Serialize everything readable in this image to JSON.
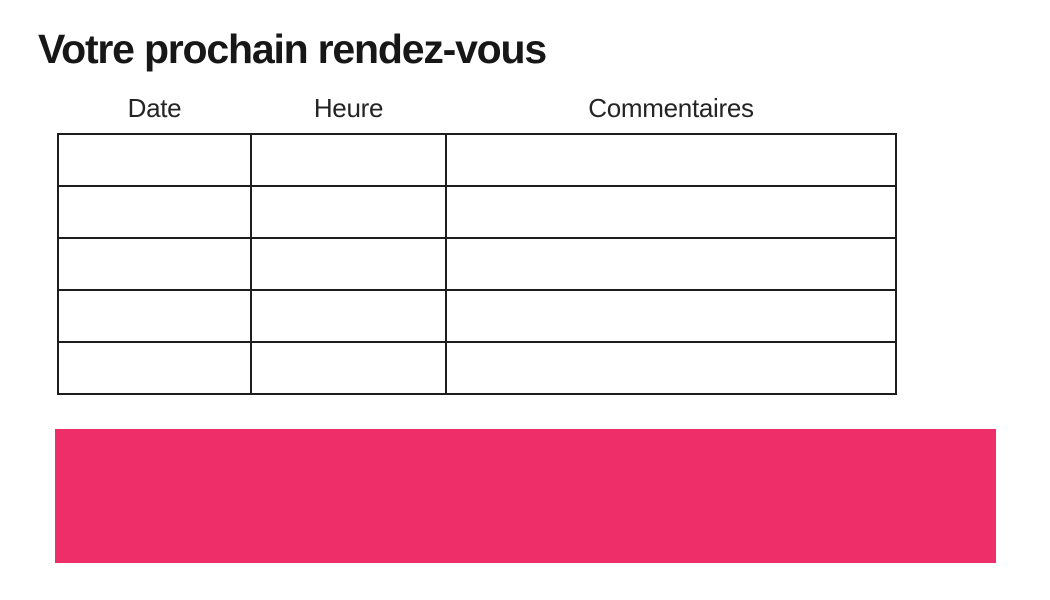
{
  "page": {
    "title": "Votre prochain rendez-vous"
  },
  "table": {
    "columns": [
      {
        "label": "Date"
      },
      {
        "label": "Heure"
      },
      {
        "label": "Commentaires"
      }
    ],
    "rows": [
      [
        "",
        "",
        ""
      ],
      [
        "",
        "",
        ""
      ],
      [
        "",
        "",
        ""
      ],
      [
        "",
        "",
        ""
      ],
      [
        "",
        "",
        ""
      ]
    ]
  },
  "banner": {
    "text": ""
  },
  "colors": {
    "accent_pink": "#ED2E68",
    "table_border": "#1d1d1d",
    "text": "#171717"
  }
}
